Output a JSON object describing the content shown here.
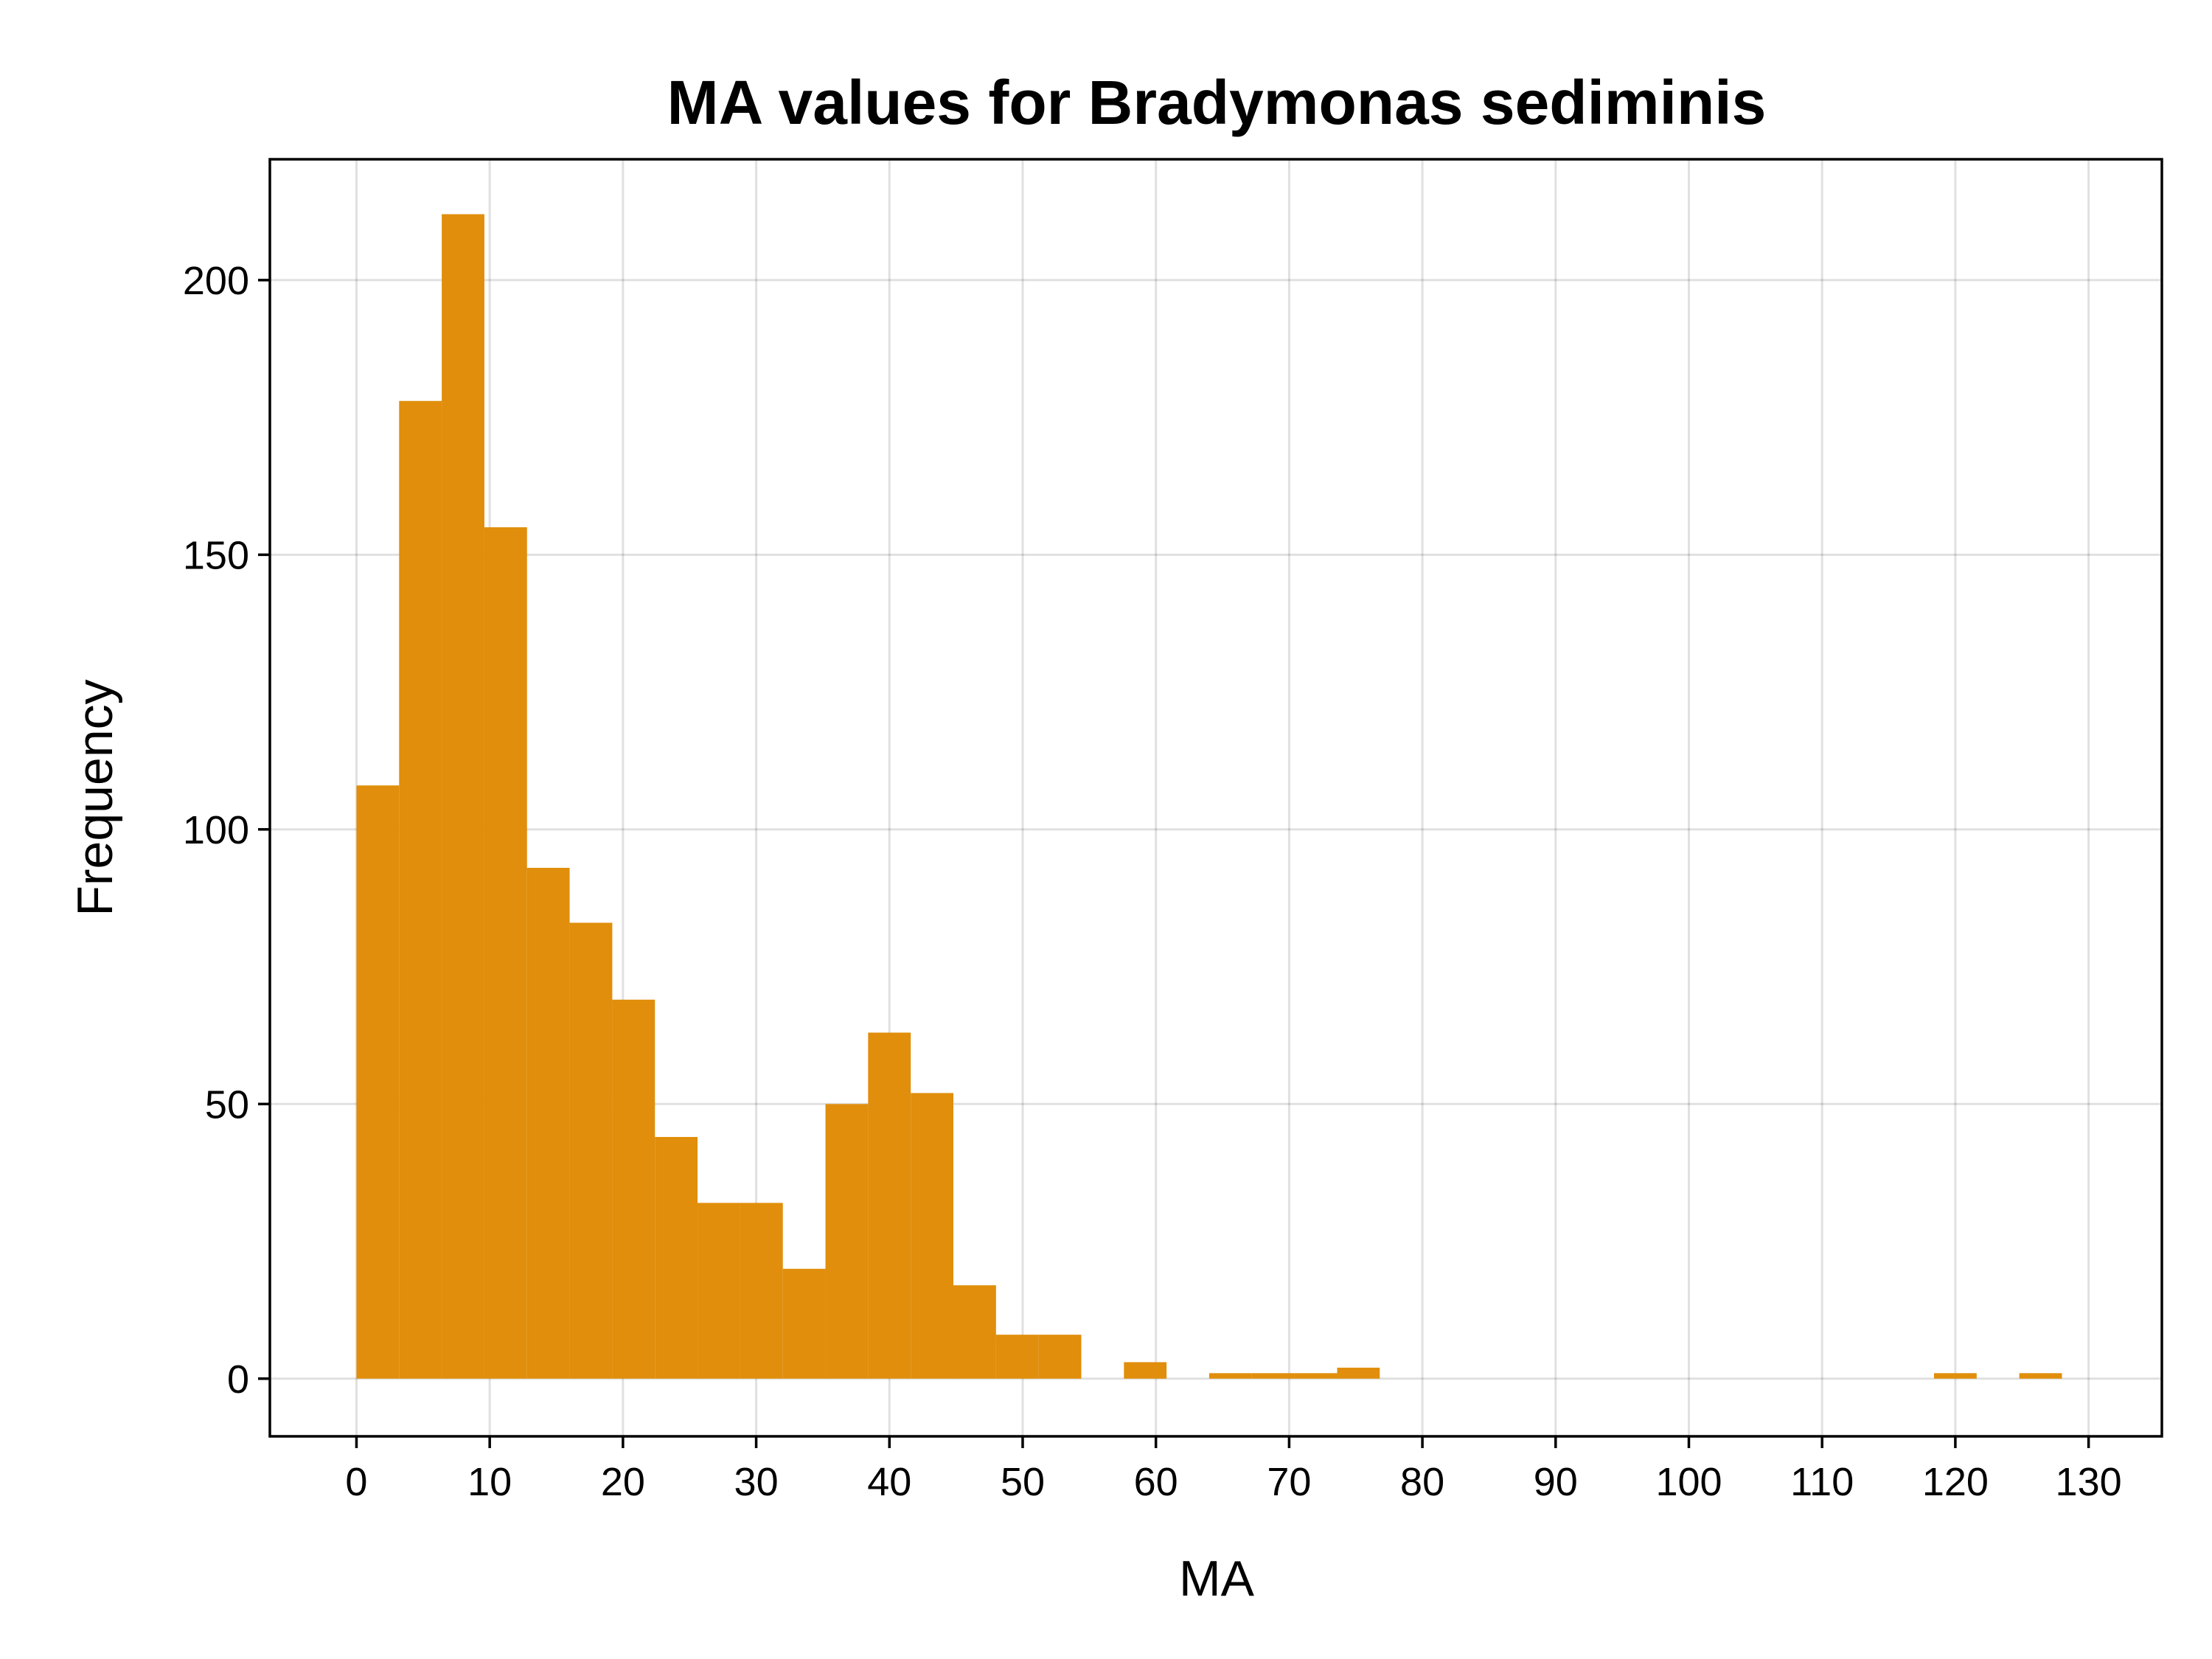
{
  "chart_data": {
    "type": "bar",
    "subtype": "histogram",
    "title": "MA values for Bradymonas sediminis",
    "xlabel": "MA",
    "ylabel": "Frequency",
    "xlim": [
      -6.5,
      135.5
    ],
    "ylim": [
      -10.5,
      222
    ],
    "xticks": [
      0,
      10,
      20,
      30,
      40,
      50,
      60,
      70,
      80,
      90,
      100,
      110,
      120,
      130
    ],
    "yticks": [
      0,
      50,
      100,
      150,
      200
    ],
    "grid": true,
    "legend": "none",
    "bar_color": "#E08E0B",
    "bins": [
      {
        "x0": 0.0,
        "x1": 3.2,
        "count": 108
      },
      {
        "x0": 3.2,
        "x1": 6.4,
        "count": 178
      },
      {
        "x0": 6.4,
        "x1": 9.6,
        "count": 212
      },
      {
        "x0": 9.6,
        "x1": 12.8,
        "count": 155
      },
      {
        "x0": 12.8,
        "x1": 16.0,
        "count": 93
      },
      {
        "x0": 16.0,
        "x1": 19.2,
        "count": 83
      },
      {
        "x0": 19.2,
        "x1": 22.4,
        "count": 69
      },
      {
        "x0": 22.4,
        "x1": 25.6,
        "count": 44
      },
      {
        "x0": 25.6,
        "x1": 28.8,
        "count": 32
      },
      {
        "x0": 28.8,
        "x1": 32.0,
        "count": 32
      },
      {
        "x0": 32.0,
        "x1": 35.2,
        "count": 20
      },
      {
        "x0": 35.2,
        "x1": 38.4,
        "count": 50
      },
      {
        "x0": 38.4,
        "x1": 41.6,
        "count": 63
      },
      {
        "x0": 41.6,
        "x1": 44.8,
        "count": 52
      },
      {
        "x0": 44.8,
        "x1": 48.0,
        "count": 17
      },
      {
        "x0": 48.0,
        "x1": 51.2,
        "count": 8
      },
      {
        "x0": 51.2,
        "x1": 54.4,
        "count": 8
      },
      {
        "x0": 57.6,
        "x1": 60.8,
        "count": 3
      },
      {
        "x0": 64.0,
        "x1": 67.2,
        "count": 1
      },
      {
        "x0": 67.2,
        "x1": 70.4,
        "count": 1
      },
      {
        "x0": 70.4,
        "x1": 73.6,
        "count": 1
      },
      {
        "x0": 73.6,
        "x1": 76.8,
        "count": 2
      },
      {
        "x0": 118.4,
        "x1": 121.6,
        "count": 1
      },
      {
        "x0": 124.8,
        "x1": 128.0,
        "count": 1
      }
    ]
  }
}
